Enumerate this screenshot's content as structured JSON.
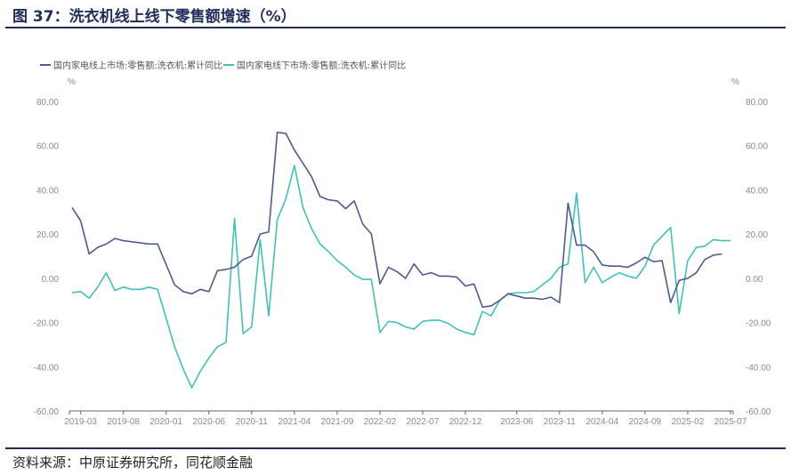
{
  "figure": {
    "title": "图 37：洗衣机线上线下零售额增速（%）",
    "source": "资料来源：中原证券研究所，同花顺金融"
  },
  "colors": {
    "series1": "#4f5b8f",
    "series2": "#3fc2b6",
    "axis": "#666666",
    "tick_text": "#8a8a8a"
  },
  "chart_data": {
    "type": "line",
    "title": "",
    "xlabel": "",
    "ylabel_left": "%",
    "ylabel_right": "%",
    "ylim": [
      -60,
      80
    ],
    "yticks": [
      "80.00",
      "60.00",
      "40.00",
      "20.00",
      "0.00",
      "-20.00",
      "-40.00",
      "-60.00"
    ],
    "y_tick_values": [
      80,
      60,
      40,
      20,
      0,
      -20,
      -40,
      -60
    ],
    "grid": false,
    "legend_position": "top-left",
    "x_tick_labels": [
      "2019-03",
      "2019-08",
      "2020-01",
      "2020-06",
      "2020-11",
      "2021-04",
      "2021-09",
      "2022-02",
      "2022-07",
      "2022-12",
      "2023-06",
      "2023-11",
      "2024-04",
      "2024-09",
      "2025-02",
      "2025-07"
    ],
    "series": [
      {
        "name": "国内家电线上市场:零售额:洗衣机:累计同比",
        "points": [
          [
            "2019-02",
            32
          ],
          [
            "2019-03",
            26
          ],
          [
            "2019-04",
            11
          ],
          [
            "2019-05",
            14
          ],
          [
            "2019-06",
            15.5
          ],
          [
            "2019-07",
            18
          ],
          [
            "2019-08",
            17
          ],
          [
            "2019-09",
            16.5
          ],
          [
            "2019-10",
            16
          ],
          [
            "2019-11",
            15.5
          ],
          [
            "2019-12",
            15.5
          ],
          [
            "2020-02",
            -3
          ],
          [
            "2020-03",
            -6
          ],
          [
            "2020-04",
            -7
          ],
          [
            "2020-05",
            -5
          ],
          [
            "2020-06",
            -6
          ],
          [
            "2020-07",
            3.5
          ],
          [
            "2020-08",
            4
          ],
          [
            "2020-09",
            5
          ],
          [
            "2020-10",
            8.5
          ],
          [
            "2020-11",
            10
          ],
          [
            "2020-12",
            20
          ],
          [
            "2021-01",
            21
          ],
          [
            "2021-02",
            66
          ],
          [
            "2021-03",
            65.5
          ],
          [
            "2021-04",
            58
          ],
          [
            "2021-05",
            52
          ],
          [
            "2021-06",
            46
          ],
          [
            "2021-07",
            37
          ],
          [
            "2021-08",
            35.5
          ],
          [
            "2021-09",
            35
          ],
          [
            "2021-10",
            31.5
          ],
          [
            "2021-11",
            35
          ],
          [
            "2021-12",
            24.5
          ],
          [
            "2022-01",
            20
          ],
          [
            "2022-02",
            -2.5
          ],
          [
            "2022-03",
            5
          ],
          [
            "2022-04",
            3
          ],
          [
            "2022-05",
            0
          ],
          [
            "2022-06",
            6.5
          ],
          [
            "2022-07",
            1.5
          ],
          [
            "2022-08",
            2.5
          ],
          [
            "2022-09",
            1
          ],
          [
            "2022-10",
            1
          ],
          [
            "2022-11",
            0.5
          ],
          [
            "2022-12",
            -3.5
          ],
          [
            "2023-01",
            -2.5
          ],
          [
            "2023-02",
            -13
          ],
          [
            "2023-03",
            -12.5
          ],
          [
            "2023-04",
            -10
          ],
          [
            "2023-05",
            -7
          ],
          [
            "2023-06",
            -8
          ],
          [
            "2023-07",
            -9
          ],
          [
            "2023-08",
            -9
          ],
          [
            "2023-09",
            -9.5
          ],
          [
            "2023-10",
            -8.5
          ],
          [
            "2023-11",
            -11
          ],
          [
            "2023-12",
            34
          ],
          [
            "2024-01",
            15
          ],
          [
            "2024-02",
            15
          ],
          [
            "2024-03",
            12
          ],
          [
            "2024-04",
            6
          ],
          [
            "2024-05",
            5.5
          ],
          [
            "2024-06",
            5.5
          ],
          [
            "2024-07",
            5
          ],
          [
            "2024-08",
            7
          ],
          [
            "2024-09",
            9.5
          ],
          [
            "2024-10",
            7.5
          ],
          [
            "2024-11",
            8
          ],
          [
            "2024-12",
            -11
          ],
          [
            "2025-01",
            -1
          ],
          [
            "2025-02",
            0
          ],
          [
            "2025-03",
            2.5
          ],
          [
            "2025-04",
            8.5
          ],
          [
            "2025-05",
            10.5
          ],
          [
            "2025-06",
            11
          ]
        ]
      },
      {
        "name": "国内家电线下市场:零售额:洗衣机:累计同比",
        "points": [
          [
            "2019-02",
            -6.5
          ],
          [
            "2019-03",
            -6
          ],
          [
            "2019-04",
            -9
          ],
          [
            "2019-05",
            -4
          ],
          [
            "2019-06",
            2.5
          ],
          [
            "2019-07",
            -5.5
          ],
          [
            "2019-08",
            -4
          ],
          [
            "2019-09",
            -5
          ],
          [
            "2019-10",
            -5
          ],
          [
            "2019-11",
            -4
          ],
          [
            "2019-12",
            -5
          ],
          [
            "2020-02",
            -31
          ],
          [
            "2020-03",
            -41
          ],
          [
            "2020-04",
            -49.5
          ],
          [
            "2020-05",
            -42
          ],
          [
            "2020-06",
            -36
          ],
          [
            "2020-07",
            -31
          ],
          [
            "2020-08",
            -29
          ],
          [
            "2020-09",
            27
          ],
          [
            "2020-10",
            -25
          ],
          [
            "2020-11",
            -22
          ],
          [
            "2020-12",
            17.5
          ],
          [
            "2021-01",
            -17
          ],
          [
            "2021-02",
            26.5
          ],
          [
            "2021-03",
            36
          ],
          [
            "2021-04",
            51
          ],
          [
            "2021-05",
            32
          ],
          [
            "2021-06",
            22.5
          ],
          [
            "2021-07",
            15.5
          ],
          [
            "2021-08",
            12
          ],
          [
            "2021-09",
            8
          ],
          [
            "2021-10",
            5
          ],
          [
            "2021-11",
            1.5
          ],
          [
            "2021-12",
            -0.5
          ],
          [
            "2022-01",
            -0.5
          ],
          [
            "2022-02",
            -24.5
          ],
          [
            "2022-03",
            -19.5
          ],
          [
            "2022-04",
            -20
          ],
          [
            "2022-05",
            -22
          ],
          [
            "2022-06",
            -23
          ],
          [
            "2022-07",
            -19.5
          ],
          [
            "2022-08",
            -19
          ],
          [
            "2022-09",
            -19
          ],
          [
            "2022-10",
            -20.5
          ],
          [
            "2022-11",
            -23
          ],
          [
            "2022-12",
            -24.5
          ],
          [
            "2023-01",
            -25.5
          ],
          [
            "2023-02",
            -15
          ],
          [
            "2023-03",
            -17
          ],
          [
            "2023-04",
            -10
          ],
          [
            "2023-05",
            -7
          ],
          [
            "2023-06",
            -6.5
          ],
          [
            "2023-07",
            -6.5
          ],
          [
            "2023-08",
            -6
          ],
          [
            "2023-09",
            -3
          ],
          [
            "2023-10",
            0
          ],
          [
            "2023-11",
            5
          ],
          [
            "2023-12",
            6.5
          ],
          [
            "2024-01",
            38.5
          ],
          [
            "2024-02",
            -2
          ],
          [
            "2024-03",
            5
          ],
          [
            "2024-04",
            -2
          ],
          [
            "2024-05",
            0.5
          ],
          [
            "2024-06",
            2.5
          ],
          [
            "2024-07",
            1
          ],
          [
            "2024-08",
            0
          ],
          [
            "2024-09",
            5.5
          ],
          [
            "2024-10",
            15
          ],
          [
            "2024-11",
            19
          ],
          [
            "2024-12",
            23
          ],
          [
            "2025-01",
            -16
          ],
          [
            "2025-02",
            8
          ],
          [
            "2025-03",
            14
          ],
          [
            "2025-04",
            14.5
          ],
          [
            "2025-05",
            17.5
          ],
          [
            "2025-06",
            17
          ],
          [
            "2025-07",
            17
          ]
        ]
      }
    ]
  }
}
